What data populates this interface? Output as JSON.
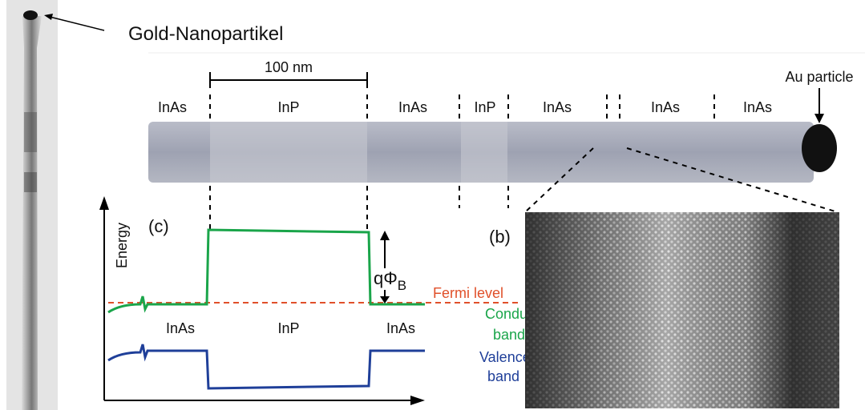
{
  "left_image": {
    "label": "Gold-Nanopartikel"
  },
  "nanowire": {
    "scale_bar": "100 nm",
    "particle_label": "Au particle",
    "segments": [
      "InAs",
      "InP",
      "InAs",
      "InP",
      "InAs",
      "InAs",
      "InAs"
    ]
  },
  "band_diagram": {
    "panel": "(c)",
    "y_axis": "Energy",
    "barrier": {
      "main": "qΦ",
      "subscript": "B"
    },
    "fermi_level": "Fermi level",
    "conduction_band": [
      "Conduction",
      "band"
    ],
    "valence_band": [
      "Valence",
      "band"
    ],
    "regions": [
      "InAs",
      "InP",
      "InAs"
    ]
  },
  "hrtem": {
    "panel": "(b)"
  }
}
